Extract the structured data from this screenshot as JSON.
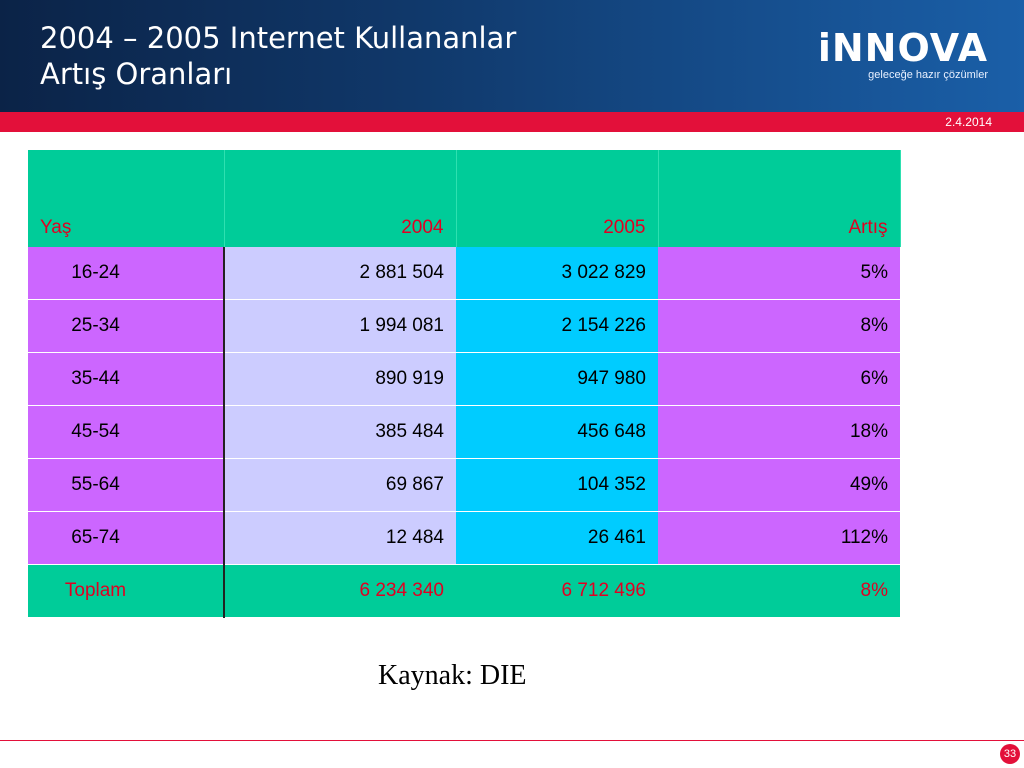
{
  "header": {
    "title_line1": "2004 – 2005 Internet Kullananlar",
    "title_line2": "Artış Oranları",
    "logo_text": "iNNOVA",
    "logo_tagline": "geleceğe hazır çözümler",
    "date": "2.4.2014"
  },
  "table": {
    "headers": [
      "Yaş",
      "2004",
      "2005",
      "Artış"
    ],
    "rows": [
      {
        "age": "16-24",
        "y2004": "2 881 504",
        "y2005": "3 022 829",
        "increase": "5%"
      },
      {
        "age": "25-34",
        "y2004": "1 994 081",
        "y2005": "2 154 226",
        "increase": "8%"
      },
      {
        "age": "35-44",
        "y2004": "890 919",
        "y2005": "947 980",
        "increase": "6%"
      },
      {
        "age": "45-54",
        "y2004": "385 484",
        "y2005": "456 648",
        "increase": "18%"
      },
      {
        "age": "55-64",
        "y2004": "69 867",
        "y2005": "104 352",
        "increase": "49%"
      },
      {
        "age": "65-74",
        "y2004": "12 484",
        "y2005": "26 461",
        "increase": "112%"
      }
    ],
    "total": {
      "age": "Toplam",
      "y2004": "6 234 340",
      "y2005": "6 712 496",
      "increase": "8%"
    }
  },
  "source": "Kaynak: DIE",
  "page_number": "33",
  "colors": {
    "header_dark": "#0b2347",
    "accent_red": "#e3103a",
    "teal": "#00cc99",
    "purple": "#cc66ff",
    "lavender": "#ccccff",
    "cyan": "#00ccff"
  }
}
